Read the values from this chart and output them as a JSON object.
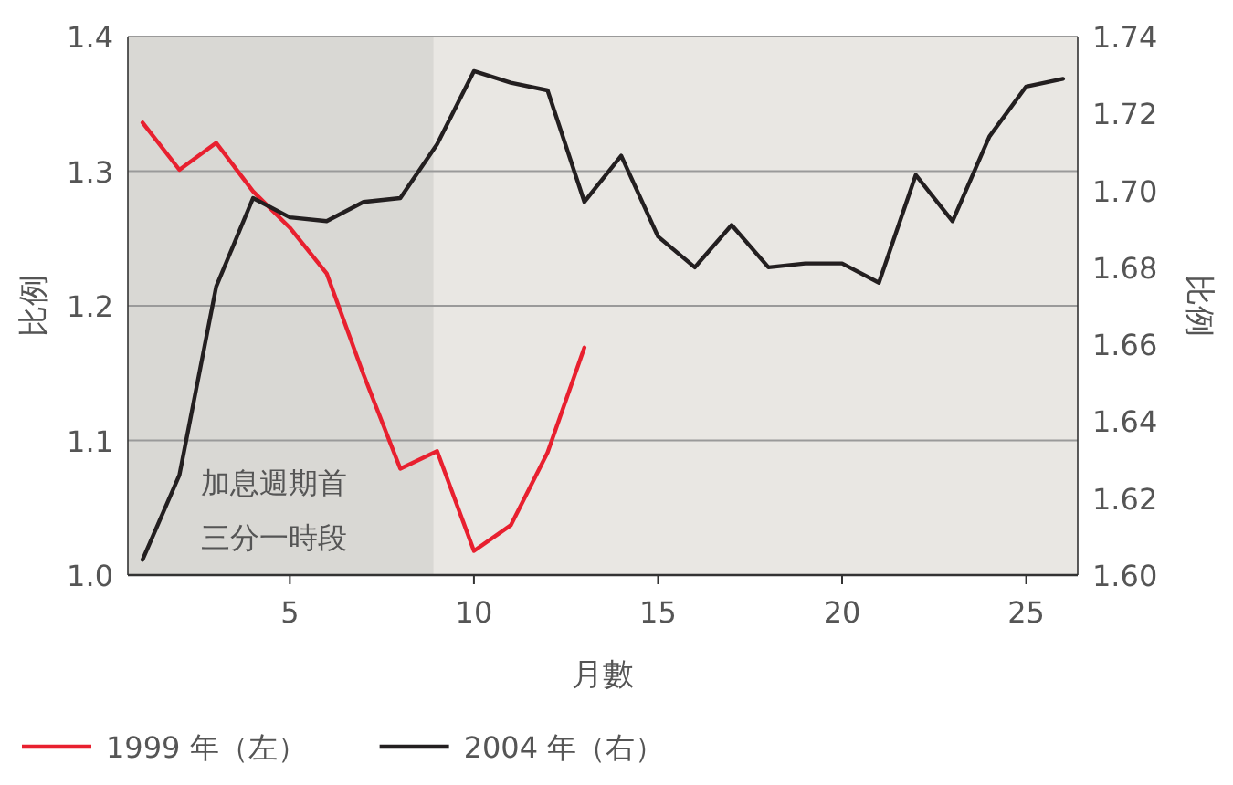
{
  "chart_data": {
    "type": "line",
    "xlabel": "月數",
    "ylabel": "比例",
    "y2label": "比例",
    "x": [
      1,
      2,
      3,
      4,
      5,
      6,
      7,
      8,
      9,
      10,
      11,
      12,
      13,
      14,
      15,
      16,
      17,
      18,
      19,
      20,
      21,
      22,
      23,
      24,
      25,
      26
    ],
    "series": [
      {
        "name": "1999 年（左）",
        "color": "#e8202f",
        "values": [
          1.336,
          1.301,
          1.321,
          1.285,
          1.258,
          1.224,
          1.149,
          1.079,
          1.092,
          1.018,
          1.037,
          1.091,
          1.169,
          null,
          null,
          null,
          null,
          null,
          null,
          null,
          null,
          null,
          null,
          null,
          null,
          null
        ]
      },
      {
        "name": "2004 年（右）",
        "color": "#231f20",
        "axis": "y2",
        "values": [
          1.604,
          1.626,
          1.675,
          1.698,
          1.693,
          1.692,
          1.697,
          1.698,
          1.712,
          1.731,
          1.728,
          1.726,
          1.697,
          1.709,
          1.688,
          1.68,
          1.691,
          1.68,
          1.681,
          1.681,
          1.676,
          1.704,
          1.692,
          1.714,
          1.727,
          1.729
        ]
      }
    ],
    "xlim": [
      0.6,
      26.4
    ],
    "xticks": [
      5,
      10,
      15,
      20,
      25
    ],
    "ylim": [
      1.0,
      1.4
    ],
    "yticks": [
      {
        "value": 1.0,
        "label": "1.0"
      },
      1.1,
      1.2,
      1.3,
      1.4
    ],
    "y2lim": [
      1.6,
      1.74
    ],
    "y2ticks": [
      {
        "value": 1.6,
        "label": "1.60"
      },
      1.62,
      1.64,
      1.66,
      1.68,
      {
        "value": 1.7,
        "label": "1.70"
      },
      1.72,
      1.74
    ],
    "bands": [
      {
        "axis": "x",
        "from": 0.6,
        "to": 8.9,
        "label": "加息週期首三分一時段",
        "color": "#d9d8d4"
      }
    ],
    "grid": "y",
    "legend": "bottom",
    "marker": "none",
    "line_style": "solid"
  }
}
